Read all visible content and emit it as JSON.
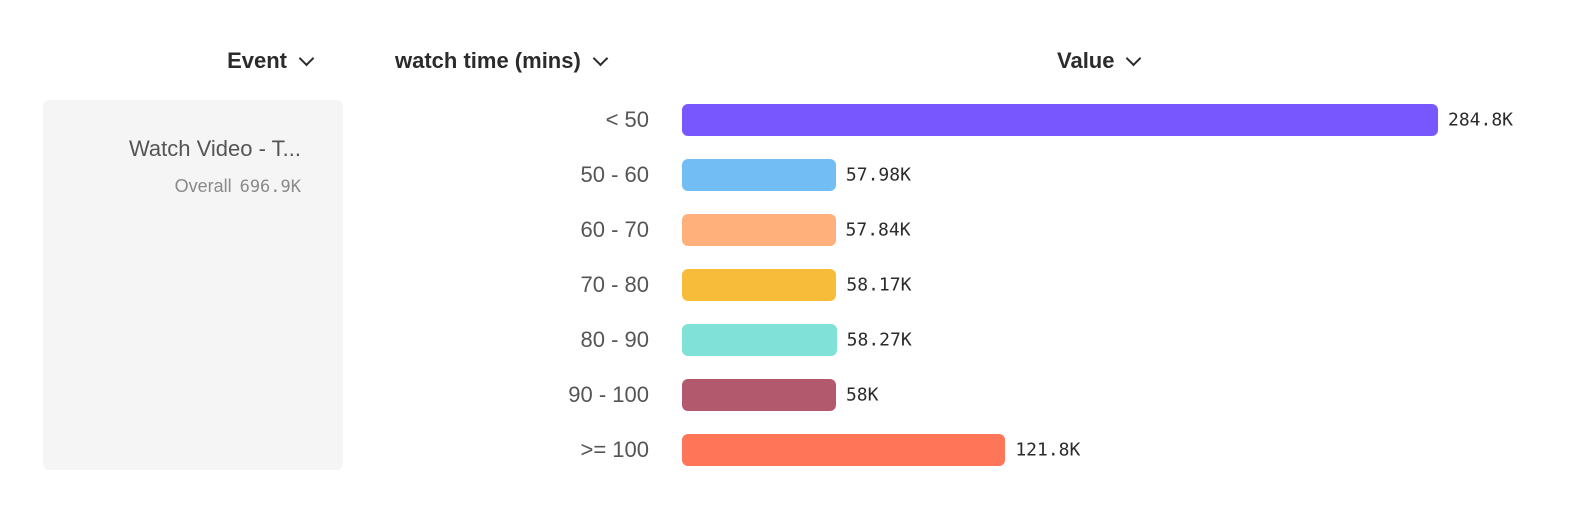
{
  "headers": {
    "event": "Event",
    "watch_time": "watch time (mins)",
    "value": "Value"
  },
  "event_panel": {
    "name": "Watch Video - T...",
    "overall_label": "Overall",
    "overall_value": "696.9K"
  },
  "chart_data": {
    "type": "bar",
    "orientation": "horizontal",
    "categories": [
      "< 50",
      "50 - 60",
      "60 - 70",
      "70 - 80",
      "80 - 90",
      "90 - 100",
      ">= 100"
    ],
    "values": [
      284800,
      57980,
      57840,
      58170,
      58270,
      58000,
      121800
    ],
    "labels": [
      "284.8K",
      "57.98K",
      "57.84K",
      "58.17K",
      "58.27K",
      "58K",
      "121.8K"
    ],
    "colors": [
      "#7857ff",
      "#72bef4",
      "#ffb07b",
      "#f8bc3b",
      "#80e1d9",
      "#b2596e",
      "#ff7557"
    ],
    "xlabel": "Value",
    "ylabel": "watch time (mins)",
    "grid": false
  }
}
